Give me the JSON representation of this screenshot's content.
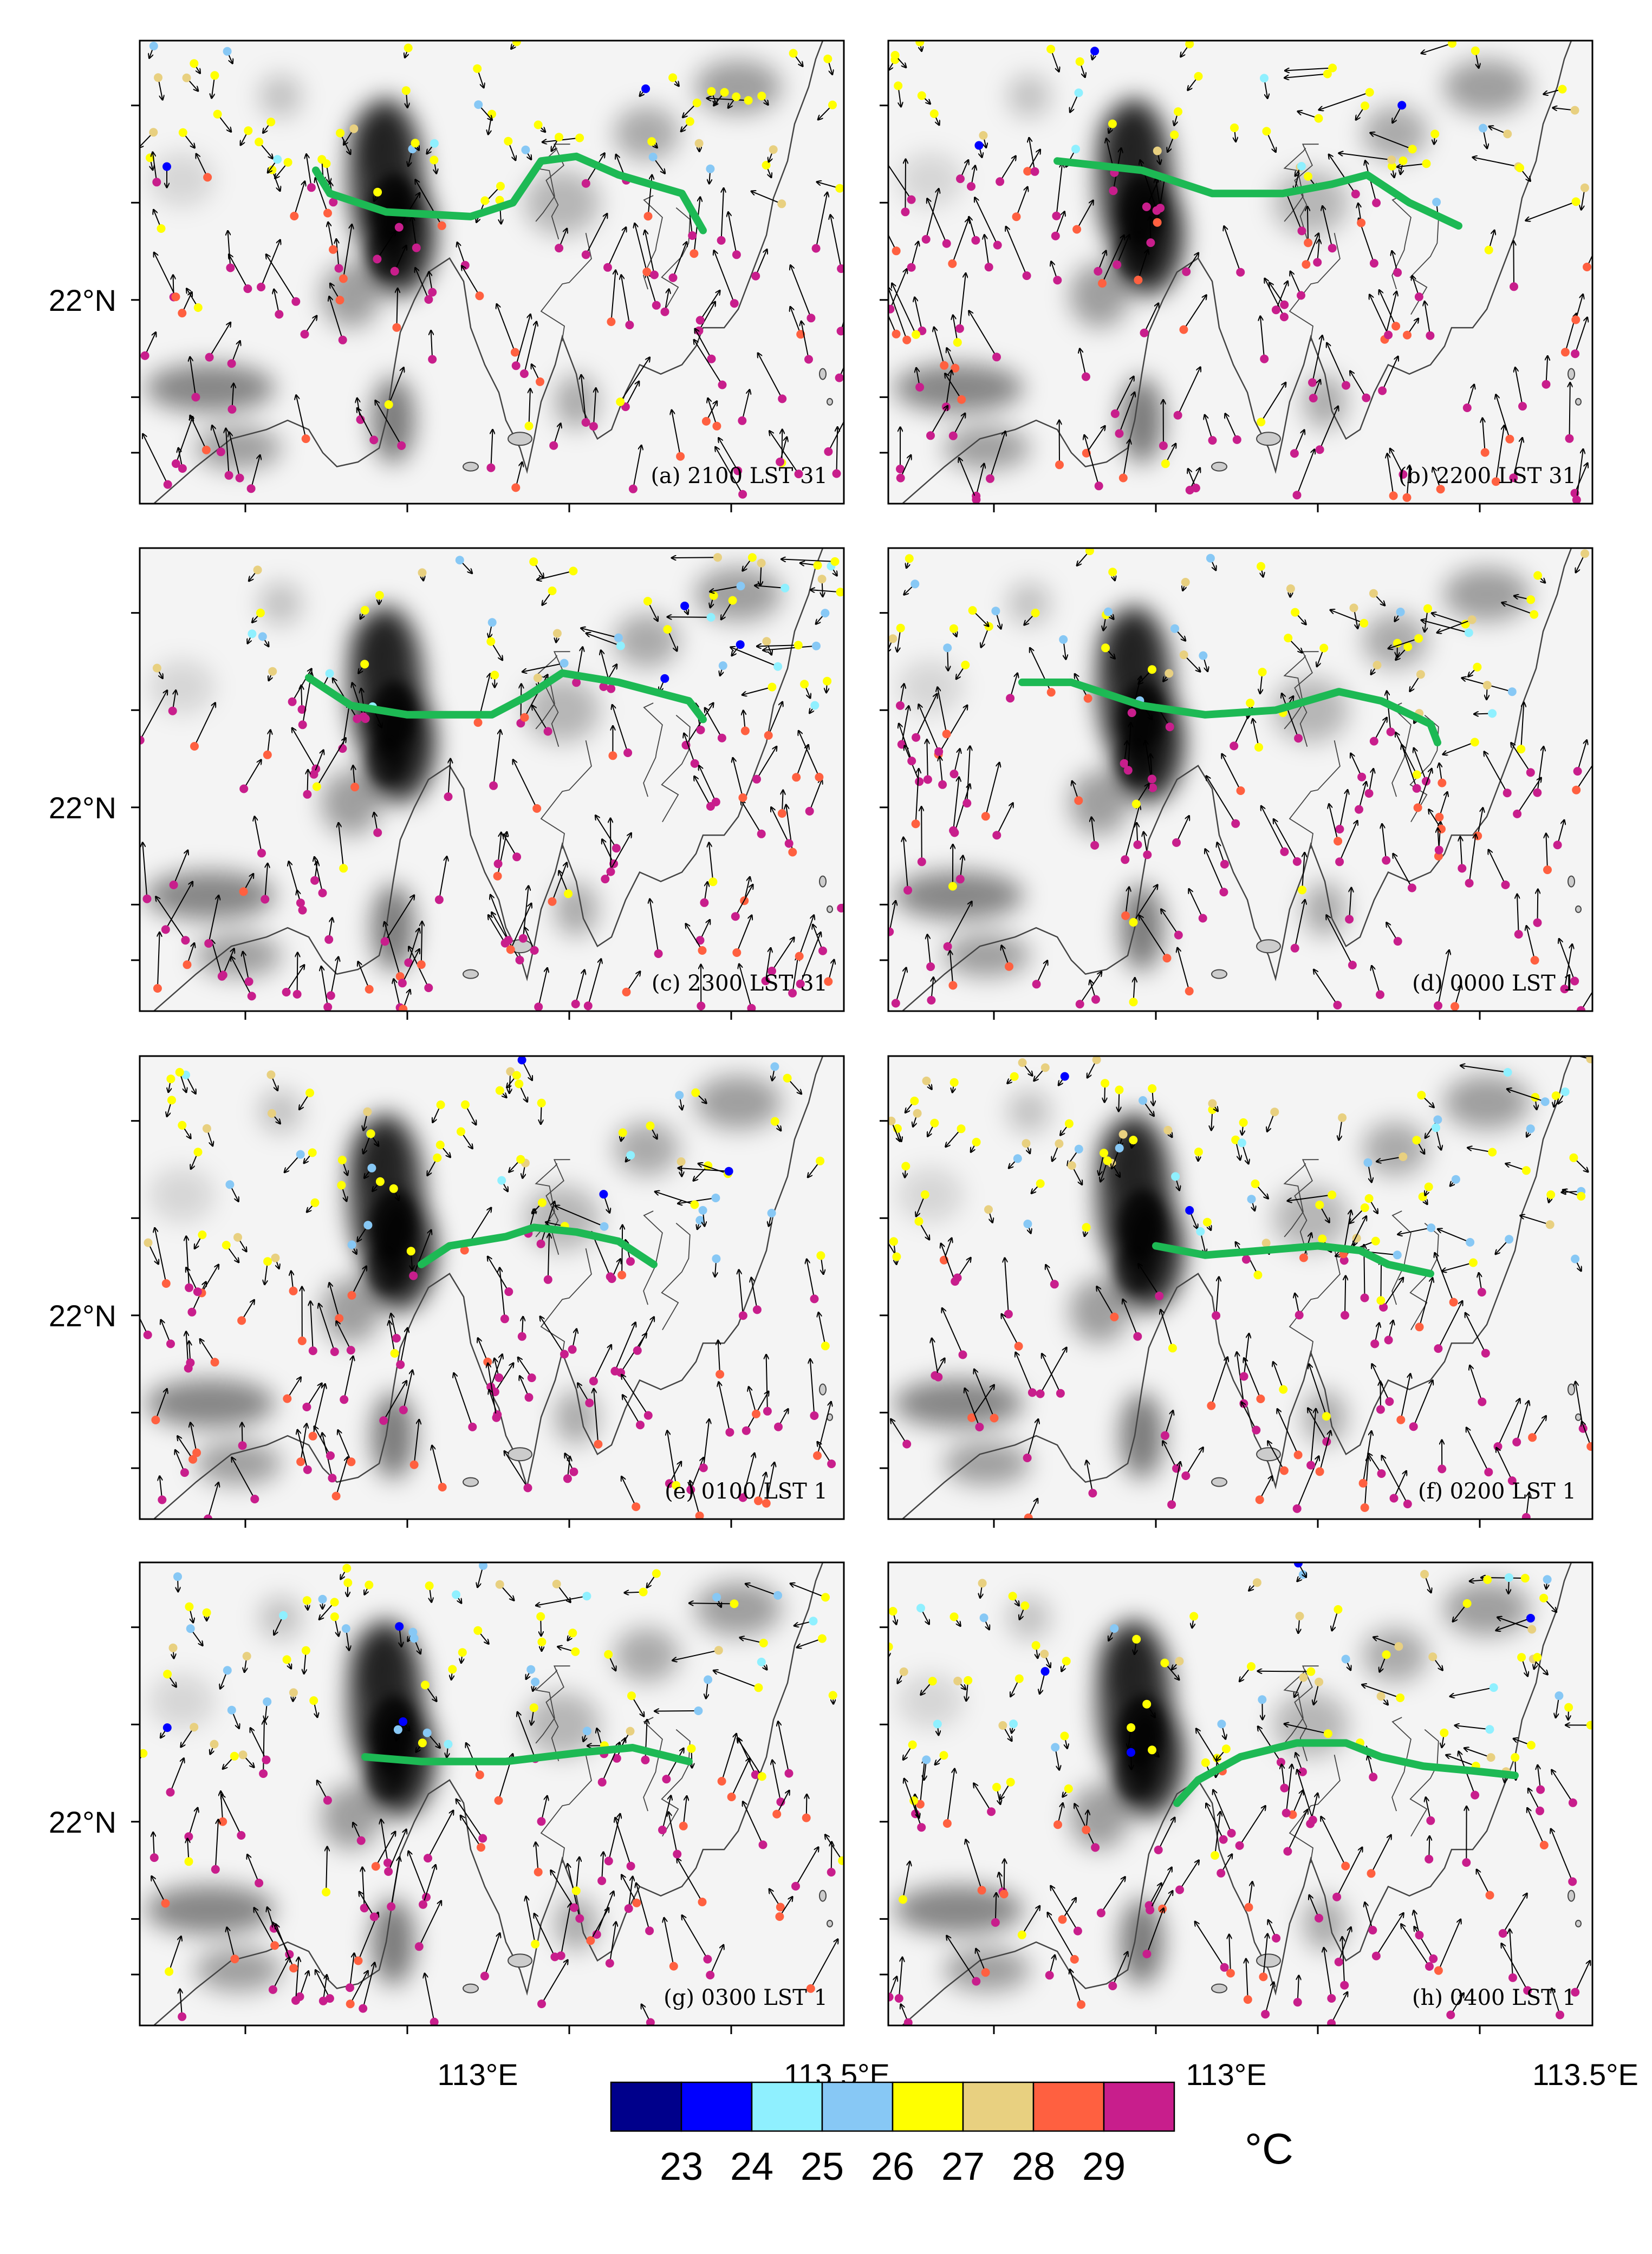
{
  "panels": [
    {
      "label": "(a) 2100 LST 31"
    },
    {
      "label": "(b) 2200 LST 31"
    },
    {
      "label": "(c) 2300 LST 31"
    },
    {
      "label": "(d) 0000 LST 1"
    },
    {
      "label": "(e) 0100 LST 1"
    },
    {
      "label": "(f) 0200 LST 1"
    },
    {
      "label": "(g) 0300 LST 1"
    },
    {
      "label": "(h) 0400 LST 1"
    }
  ],
  "axes": {
    "lat_label": "22°N",
    "lon_labels": [
      "113°E",
      "113.5°E"
    ]
  },
  "colorbar": {
    "tick_labels": [
      "23",
      "24",
      "25",
      "26",
      "27",
      "28",
      "29"
    ],
    "colors": [
      "#00008b",
      "#0000ff",
      "#8ff0ff",
      "#87c8f5",
      "#ffff00",
      "#e8d080",
      "#ff6040",
      "#c81e8c"
    ],
    "unit": "°C"
  },
  "styles": {
    "front_line_color": "#1db954",
    "coastline_color": "#444444",
    "terrain_color": "#000000"
  }
}
